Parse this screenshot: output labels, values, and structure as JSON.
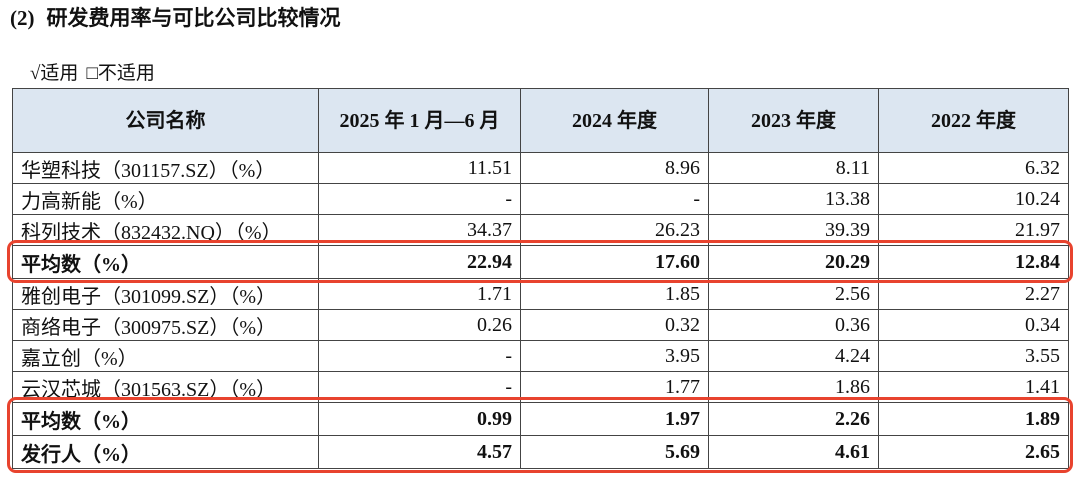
{
  "header": {
    "number": "(2)",
    "title": "研发费用率与可比公司比较情况"
  },
  "applicability": {
    "applicable": "√适用",
    "not_applicable": "□不适用"
  },
  "table": {
    "columns": [
      "公司名称",
      "2025 年 1 月—6 月",
      "2024 年度",
      "2023 年度",
      "2022 年度"
    ],
    "rows": [
      [
        "华塑科技（301157.SZ）（%）",
        "11.51",
        "8.96",
        "8.11",
        "6.32"
      ],
      [
        "力高新能（%）",
        "-",
        "-",
        "13.38",
        "10.24"
      ],
      [
        "科列技术（832432.NQ）（%）",
        "34.37",
        "26.23",
        "39.39",
        "21.97"
      ],
      [
        "平均数（%）",
        "22.94",
        "17.60",
        "20.29",
        "12.84"
      ],
      [
        "雅创电子（301099.SZ）（%）",
        "1.71",
        "1.85",
        "2.56",
        "2.27"
      ],
      [
        "商络电子（300975.SZ）（%）",
        "0.26",
        "0.32",
        "0.36",
        "0.34"
      ],
      [
        "嘉立创（%）",
        "-",
        "3.95",
        "4.24",
        "3.55"
      ],
      [
        "云汉芯城（301563.SZ）（%）",
        "-",
        "1.77",
        "1.86",
        "1.41"
      ],
      [
        "平均数（%）",
        "0.99",
        "1.97",
        "2.26",
        "1.89"
      ],
      [
        "发行人（%）",
        "4.57",
        "5.69",
        "4.61",
        "2.65"
      ]
    ]
  }
}
